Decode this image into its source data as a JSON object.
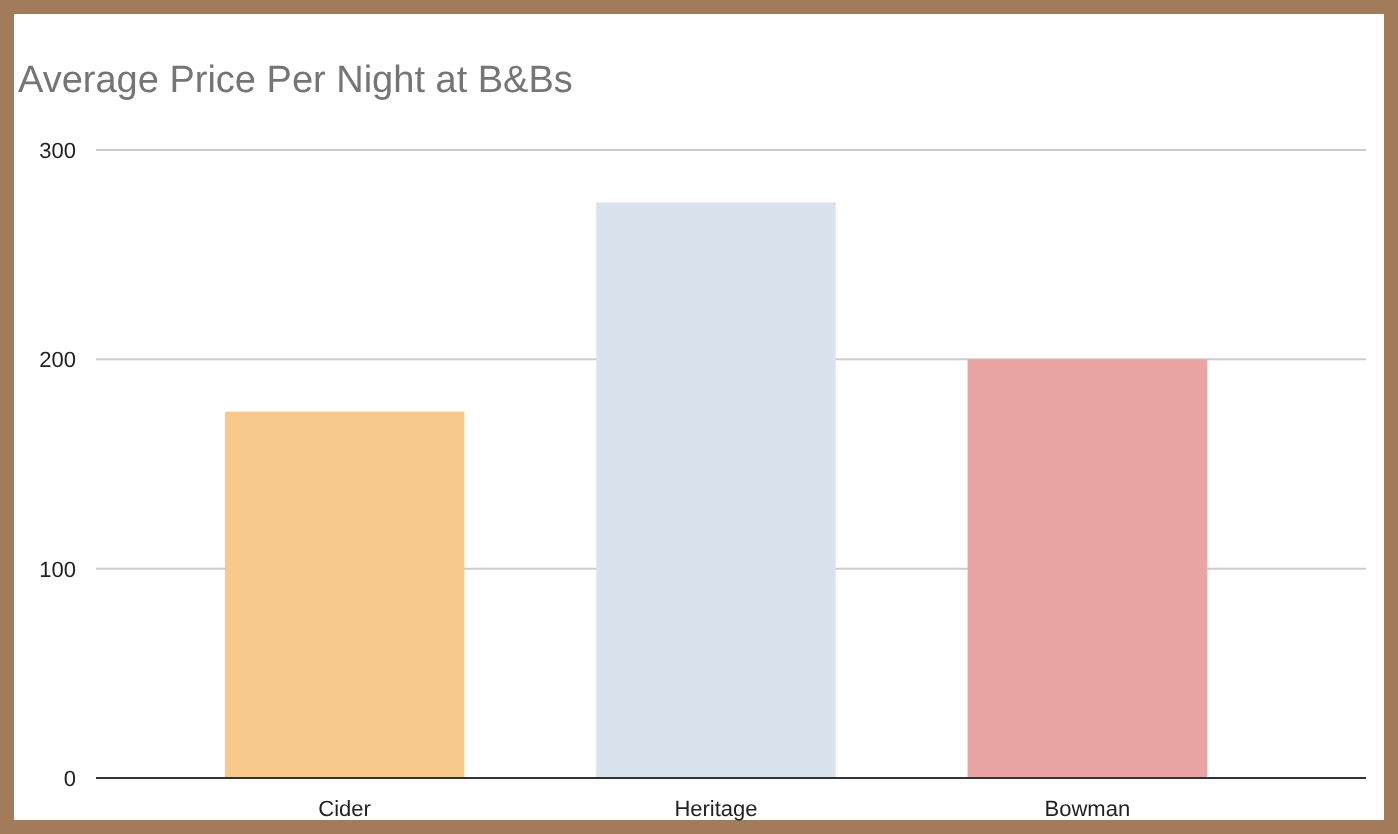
{
  "chart_data": {
    "type": "bar",
    "title": "Average Price Per Night at B&Bs",
    "categories": [
      "Cider",
      "Heritage",
      "Bowman"
    ],
    "values": [
      175,
      275,
      200
    ],
    "colors": [
      "#f7ca8b",
      "#d9e3ee",
      "#eba4a4"
    ],
    "ylim": [
      0,
      300
    ],
    "yticks": [
      0,
      100,
      200,
      300
    ],
    "grid": "y"
  }
}
